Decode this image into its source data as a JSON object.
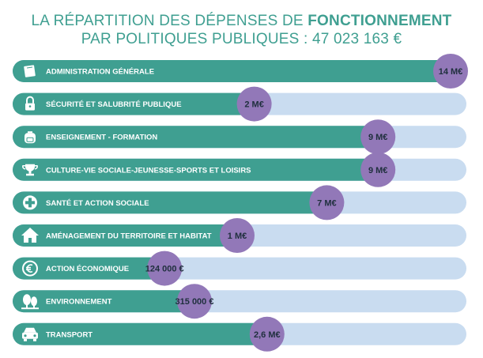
{
  "header": {
    "title_prefix": "LA RÉPARTITION DES DÉPENSES DE",
    "title_emphasis": "FONCTIONNEMENT",
    "subtitle": "PAR POLITIQUES PUBLIQUES : 47 023 163 €"
  },
  "colors": {
    "title": "#3f9f91",
    "bar_fill": "#3f9f91",
    "track": "#c9dcf0",
    "bubble": "#9278b8",
    "value_text": "#1f2f3d",
    "label_text": "#ffffff"
  },
  "chart_data": {
    "type": "bar",
    "orientation": "horizontal",
    "title": "LA RÉPARTITION DES DÉPENSES DE FONCTIONNEMENT PAR POLITIQUES PUBLIQUES : 47 023 163 €",
    "categories": [
      "ADMINISTRATION GÉNÉRALE",
      "SÉCURITÉ ET SALUBRITÉ PUBLIQUE",
      "ENSEIGNEMENT - FORMATION",
      "CULTURE-VIE SOCIALE-JEUNESSE-SPORTS ET LOISIRS",
      "SANTÉ ET ACTION SOCIALE",
      "AMÉNAGEMENT DU TERRITOIRE ET HABITAT",
      "ACTION ÉCONOMIQUE",
      "ENVIRONNEMENT",
      "TRANSPORT"
    ],
    "value_labels": [
      "14 M€",
      "2 M€",
      "9 M€",
      "9 M€",
      "7 M€",
      "1 M€",
      "124 000 €",
      "315 000 €",
      "2,6 M€"
    ],
    "bar_fill_fraction": [
      1.0,
      0.54,
      0.83,
      0.83,
      0.71,
      0.5,
      0.33,
      0.4,
      0.57
    ],
    "icons": [
      "book-icon",
      "padlock-icon",
      "backpack-icon",
      "trophy-icon",
      "medical-cross-icon",
      "house-icon",
      "euro-coin-icon",
      "trees-icon",
      "car-icon"
    ],
    "grid": false,
    "legend": "none"
  }
}
